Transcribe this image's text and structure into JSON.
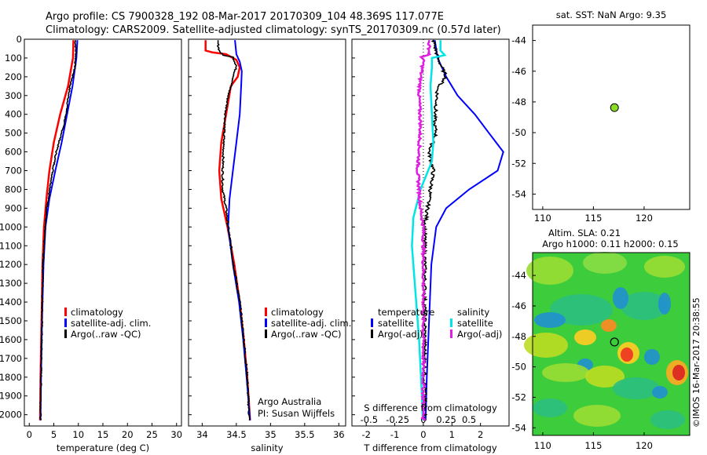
{
  "header": {
    "line1": "Argo profile: CS 7900328_192 08-Mar-2017 20170309_104 48.369S 117.077E",
    "line2": "Climatology: CARS2009. Satellite-adjusted climatology: synTS_20170309.nc (0.57d later)"
  },
  "colors": {
    "climatology": "#ff0000",
    "satellite": "#0000ff",
    "argo": "#000000",
    "salinity_satellite": "#00e5e5",
    "salinity_argo": "#e020e0",
    "float_marker": "#88dd22"
  },
  "chart_data": [
    {
      "type": "line",
      "panel": "temperature",
      "xlabel": "temperature (deg C)",
      "ylabel": "",
      "xlim": [
        -1,
        31
      ],
      "ylim": [
        2060,
        0
      ],
      "xticks": [
        "0",
        "5",
        "10",
        "15",
        "20",
        "25",
        "30"
      ],
      "yticks": [
        "0",
        "100",
        "200",
        "300",
        "400",
        "500",
        "600",
        "700",
        "800",
        "900",
        "1000",
        "1100",
        "1200",
        "1300",
        "1400",
        "1500",
        "1600",
        "1700",
        "1800",
        "1900",
        "2000"
      ],
      "legend": [
        "climatology",
        "satellite-adj. clim.",
        "Argo(..raw -QC)"
      ],
      "series": [
        {
          "name": "climatology",
          "color": "red",
          "points": [
            [
              9.0,
              5
            ],
            [
              8.9,
              100
            ],
            [
              7.9,
              250
            ],
            [
              6.3,
              400
            ],
            [
              5.0,
              550
            ],
            [
              4.1,
              700
            ],
            [
              3.5,
              850
            ],
            [
              3.0,
              1000
            ],
            [
              2.7,
              1200
            ],
            [
              2.5,
              1500
            ],
            [
              2.3,
              1800
            ],
            [
              2.2,
              2030
            ]
          ]
        },
        {
          "name": "satellite-adj. clim.",
          "color": "blue",
          "points": [
            [
              9.8,
              5
            ],
            [
              9.6,
              100
            ],
            [
              8.8,
              250
            ],
            [
              7.7,
              400
            ],
            [
              6.6,
              550
            ],
            [
              5.3,
              700
            ],
            [
              4.1,
              850
            ],
            [
              3.3,
              1000
            ],
            [
              2.9,
              1200
            ],
            [
              2.6,
              1500
            ],
            [
              2.4,
              1800
            ],
            [
              2.3,
              2030
            ]
          ]
        },
        {
          "name": "Argo(..raw -QC)",
          "color": "black",
          "points": [
            [
              9.4,
              5
            ],
            [
              9.5,
              80
            ],
            [
              9.3,
              150
            ],
            [
              8.8,
              200
            ],
            [
              8.3,
              250
            ],
            [
              8.0,
              300
            ],
            [
              7.5,
              400
            ],
            [
              6.6,
              500
            ],
            [
              5.5,
              600
            ],
            [
              4.8,
              700
            ],
            [
              4.2,
              800
            ],
            [
              3.6,
              900
            ],
            [
              3.2,
              1000
            ],
            [
              2.8,
              1200
            ],
            [
              2.6,
              1500
            ],
            [
              2.4,
              1800
            ],
            [
              2.3,
              2030
            ]
          ]
        }
      ]
    },
    {
      "type": "line",
      "panel": "salinity",
      "xlabel": "salinity",
      "xlim": [
        33.8,
        36.1
      ],
      "ylim": [
        2060,
        0
      ],
      "xticks": [
        "34",
        "34.5",
        "35",
        "35.5",
        "36"
      ],
      "legend": [
        "climatology",
        "satellite-adj. clim.",
        "Argo(..raw -QC)"
      ],
      "annotation": [
        "Argo Australia",
        "PI: Susan Wijffels"
      ],
      "series": [
        {
          "name": "climatology",
          "color": "red",
          "points": [
            [
              34.05,
              5
            ],
            [
              34.05,
              60
            ],
            [
              34.15,
              70
            ],
            [
              34.35,
              80
            ],
            [
              34.5,
              110
            ],
            [
              34.55,
              150
            ],
            [
              34.52,
              200
            ],
            [
              34.42,
              250
            ],
            [
              34.35,
              400
            ],
            [
              34.28,
              550
            ],
            [
              34.25,
              700
            ],
            [
              34.28,
              850
            ],
            [
              34.37,
              1000
            ],
            [
              34.47,
              1200
            ],
            [
              34.55,
              1400
            ],
            [
              34.61,
              1600
            ],
            [
              34.66,
              1800
            ],
            [
              34.7,
              2030
            ]
          ]
        },
        {
          "name": "satellite-adj. clim.",
          "color": "blue",
          "points": [
            [
              34.48,
              5
            ],
            [
              34.5,
              80
            ],
            [
              34.55,
              120
            ],
            [
              34.58,
              170
            ],
            [
              34.57,
              250
            ],
            [
              34.55,
              400
            ],
            [
              34.5,
              550
            ],
            [
              34.45,
              700
            ],
            [
              34.4,
              850
            ],
            [
              34.38,
              1000
            ],
            [
              34.45,
              1200
            ],
            [
              34.54,
              1400
            ],
            [
              34.6,
              1600
            ],
            [
              34.65,
              1800
            ],
            [
              34.7,
              2030
            ]
          ]
        },
        {
          "name": "Argo(..raw -QC)",
          "color": "black",
          "points": [
            [
              34.22,
              5
            ],
            [
              34.25,
              60
            ],
            [
              34.3,
              85
            ],
            [
              34.45,
              95
            ],
            [
              34.5,
              140
            ],
            [
              34.46,
              200
            ],
            [
              34.38,
              300
            ],
            [
              34.34,
              400
            ],
            [
              34.32,
              500
            ],
            [
              34.31,
              600
            ],
            [
              34.3,
              700
            ],
            [
              34.3,
              800
            ],
            [
              34.35,
              900
            ],
            [
              34.38,
              1000
            ],
            [
              34.46,
              1200
            ],
            [
              34.55,
              1400
            ],
            [
              34.61,
              1600
            ],
            [
              34.66,
              1800
            ],
            [
              34.69,
              2030
            ]
          ]
        }
      ]
    },
    {
      "type": "line",
      "panel": "difference",
      "xlabel": "T difference from climatology",
      "xlabel2": "S difference from climatology",
      "xlim": [
        -2.5,
        3.0
      ],
      "ylim": [
        2060,
        0
      ],
      "xticks_T": [
        "-2",
        "-1",
        "0",
        "1",
        "2"
      ],
      "xticks_S": [
        "-0.5",
        "-0.25",
        "0",
        "0.25",
        "0.5"
      ],
      "legend_temperature": [
        "temperature",
        "satellite",
        "Argo(-adj)"
      ],
      "legend_salinity": [
        "salinity",
        "satellite",
        "Argo(-adj)"
      ],
      "series": [
        {
          "name": "temperature satellite",
          "color": "blue",
          "points": [
            [
              0.4,
              5
            ],
            [
              0.5,
              100
            ],
            [
              0.8,
              200
            ],
            [
              1.2,
              300
            ],
            [
              1.8,
              400
            ],
            [
              2.3,
              500
            ],
            [
              2.8,
              600
            ],
            [
              2.6,
              700
            ],
            [
              1.6,
              800
            ],
            [
              0.8,
              900
            ],
            [
              0.45,
              1000
            ],
            [
              0.28,
              1200
            ],
            [
              0.2,
              1500
            ],
            [
              0.12,
              1800
            ],
            [
              0.08,
              2030
            ]
          ]
        },
        {
          "name": "temperature Argo(-adj)",
          "color": "black",
          "points": [
            [
              0.35,
              5
            ],
            [
              0.5,
              100
            ],
            [
              0.8,
              200
            ],
            [
              0.5,
              260
            ],
            [
              0.45,
              350
            ],
            [
              0.38,
              450
            ],
            [
              0.45,
              500
            ],
            [
              0.2,
              600
            ],
            [
              0.35,
              700
            ],
            [
              0.25,
              800
            ],
            [
              0.15,
              900
            ],
            [
              0.05,
              1000
            ],
            [
              0.05,
              1200
            ],
            [
              0.05,
              1500
            ],
            [
              0.05,
              1800
            ],
            [
              0.05,
              2030
            ]
          ]
        },
        {
          "name": "salinity satellite",
          "color": "cyan",
          "points": [
            [
              0.6,
              5
            ],
            [
              0.6,
              60
            ],
            [
              0.75,
              85
            ],
            [
              0.3,
              100
            ],
            [
              0.3,
              150
            ],
            [
              0.25,
              250
            ],
            [
              0.3,
              400
            ],
            [
              0.35,
              550
            ],
            [
              0.3,
              650
            ],
            [
              -0.1,
              800
            ],
            [
              -0.35,
              950
            ],
            [
              -0.4,
              1100
            ],
            [
              -0.3,
              1300
            ],
            [
              -0.15,
              1600
            ],
            [
              -0.05,
              1900
            ],
            [
              -0.02,
              2030
            ]
          ]
        },
        {
          "name": "salinity Argo(-adj)",
          "color": "magenta",
          "points": [
            [
              0.2,
              5
            ],
            [
              0.2,
              80
            ],
            [
              -0.05,
              95
            ],
            [
              0.0,
              120
            ],
            [
              -0.1,
              200
            ],
            [
              -0.15,
              300
            ],
            [
              -0.1,
              450
            ],
            [
              -0.15,
              600
            ],
            [
              -0.2,
              700
            ],
            [
              -0.15,
              800
            ],
            [
              -0.1,
              900
            ],
            [
              0.0,
              1000
            ],
            [
              0.0,
              1300
            ],
            [
              0.0,
              1700
            ],
            [
              0.0,
              2030
            ]
          ]
        }
      ]
    },
    {
      "type": "scatter",
      "panel": "sst_map",
      "title": "sat. SST: NaN Argo: 9.35",
      "xlim": [
        109,
        124.5
      ],
      "ylim": [
        -55,
        -43
      ],
      "xticks": [
        "110",
        "115",
        "120"
      ],
      "yticks": [
        "-44",
        "-46",
        "-48",
        "-50",
        "-52",
        "-54"
      ],
      "points": [
        [
          117.077,
          -48.369
        ]
      ]
    },
    {
      "type": "heatmap",
      "panel": "sla_map",
      "title": "Altim. SLA: 0.21",
      "subtitle": "Argo h1000: 0.11 h2000: 0.15",
      "xlim": [
        109,
        124.5
      ],
      "ylim": [
        -54.5,
        -42.5
      ],
      "xticks": [
        "110",
        "115",
        "120"
      ],
      "yticks": [
        "-44",
        "-46",
        "-48",
        "-50",
        "-52",
        "-54"
      ],
      "float": [
        117.077,
        -48.369
      ]
    }
  ],
  "credit": "©IMOS 16-Mar-2017 20:38:55"
}
